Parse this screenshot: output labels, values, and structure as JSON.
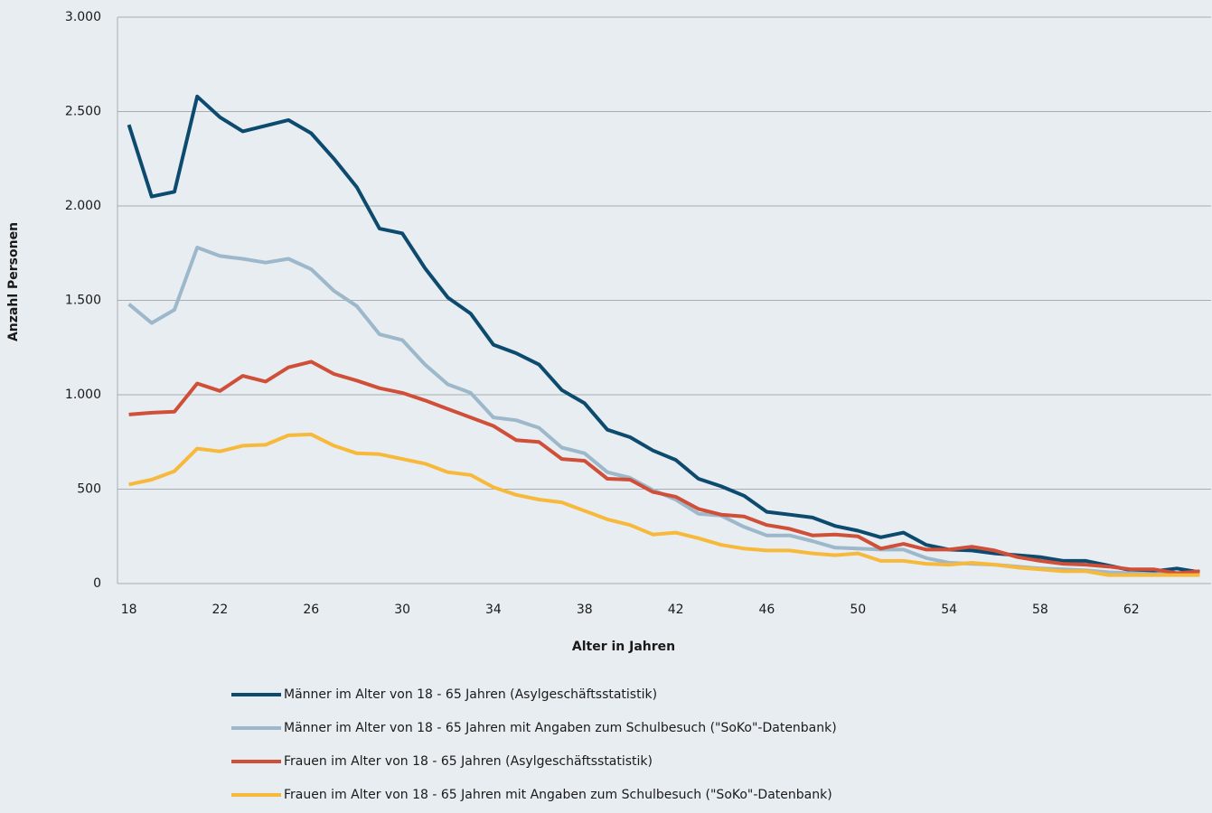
{
  "chart_data": {
    "type": "line",
    "x_label": "Alter in Jahren",
    "y_label": "Anzahl Personen",
    "categories": [
      18,
      null,
      null,
      null,
      22,
      null,
      null,
      null,
      26,
      null,
      null,
      null,
      30,
      null,
      null,
      null,
      34,
      null,
      null,
      null,
      38,
      null,
      null,
      null,
      42,
      null,
      null,
      null,
      46,
      null,
      null,
      null,
      50,
      null,
      null,
      null,
      54,
      null,
      null,
      null,
      58,
      null,
      null,
      null,
      62,
      null,
      null,
      null
    ],
    "ylim": [
      0,
      3000
    ],
    "yticks": [
      0,
      500,
      {
        "value": 1000,
        "label": "1.000"
      },
      {
        "value": 1500,
        "label": "1.500"
      },
      {
        "value": 2000,
        "label": "2.000"
      },
      {
        "value": 2500,
        "label": "2.500"
      },
      {
        "value": 3000,
        "label": "3.000"
      }
    ],
    "grid": true,
    "legend": "bottom",
    "series": [
      {
        "name": "Männer im Alter von 18 - 65 Jahren (Asylgeschäftsstatistik)",
        "color": "#0c4a6e",
        "values": [
          2430,
          2050,
          2075,
          2580,
          2470,
          2395,
          2425,
          2455,
          2385,
          2250,
          2100,
          1880,
          1855,
          1670,
          1515,
          1430,
          1265,
          1220,
          1160,
          1025,
          955,
          815,
          775,
          705,
          655,
          555,
          515,
          465,
          380,
          365,
          350,
          305,
          280,
          245,
          270,
          205,
          180,
          175,
          160,
          150,
          140,
          120,
          120,
          95,
          70,
          65,
          80,
          60
        ]
      },
      {
        "name": "Männer im Alter von 18 - 65 Jahren mit Angaben zum Schulbesuch (\"SoKo\"-Datenbank)",
        "color": "#9cb8ca",
        "values": [
          1480,
          1380,
          1450,
          1780,
          1735,
          1720,
          1700,
          1720,
          1665,
          1550,
          1470,
          1320,
          1290,
          1160,
          1055,
          1010,
          880,
          865,
          825,
          720,
          690,
          590,
          560,
          495,
          445,
          370,
          360,
          300,
          255,
          255,
          225,
          190,
          185,
          180,
          180,
          135,
          110,
          105,
          100,
          90,
          80,
          75,
          70,
          60,
          55,
          50,
          55,
          55
        ]
      },
      {
        "name": "Frauen im Alter von 18 - 65 Jahren (Asylgeschäftsstatistik)",
        "color": "#cf4f38",
        "values": [
          895,
          905,
          910,
          1060,
          1020,
          1100,
          1070,
          1145,
          1175,
          1110,
          1075,
          1035,
          1010,
          970,
          925,
          880,
          835,
          760,
          750,
          660,
          650,
          555,
          550,
          485,
          460,
          395,
          365,
          355,
          310,
          290,
          255,
          260,
          250,
          185,
          210,
          180,
          180,
          195,
          175,
          140,
          120,
          105,
          100,
          90,
          75,
          75,
          55,
          65
        ]
      },
      {
        "name": "Frauen im Alter von 18 - 65 Jahren mit Angaben zum Schulbesuch (\"SoKo\"-Datenbank)",
        "color": "#f7b93b",
        "values": [
          525,
          550,
          595,
          715,
          700,
          730,
          735,
          785,
          790,
          730,
          690,
          685,
          660,
          635,
          590,
          575,
          510,
          470,
          445,
          430,
          385,
          340,
          310,
          260,
          270,
          240,
          205,
          185,
          175,
          175,
          160,
          150,
          160,
          120,
          120,
          105,
          100,
          110,
          100,
          85,
          75,
          65,
          65,
          45,
          45,
          45,
          45,
          45
        ]
      }
    ]
  }
}
